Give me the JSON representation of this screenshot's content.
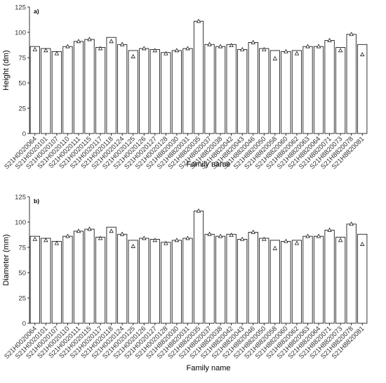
{
  "chart_data": [
    {
      "type": "bar",
      "panel_label": "a)",
      "xlabel": "Family name",
      "ylabel": "Height (dm)",
      "ylim": [
        0,
        125
      ],
      "yticks": [
        0,
        25,
        50,
        75,
        100,
        125
      ],
      "grid": false,
      "categories": [
        "S21H0020064",
        "S21H0020101",
        "S21H0020107",
        "S21H0020110",
        "S21H0020111",
        "S21H0020115",
        "S21H0020117",
        "S21H0020118",
        "S21H0020124",
        "S21H0020125",
        "S21H0020126",
        "S21H0020127",
        "S21H0020128",
        "S21H8820030",
        "S21H8820031",
        "S21H8820035",
        "S21H8820037",
        "S21H8820038",
        "S21H8820042",
        "S21H8820043",
        "S21H8820046",
        "S21H8820050",
        "S21H8820058",
        "S21H8820060",
        "S21H8820062",
        "S21H8820063",
        "S21H8820064",
        "S21H8820071",
        "S21H8820073",
        "S21H8820078",
        "S21H8820081"
      ],
      "series": [
        {
          "type": "bar",
          "values": [
            86,
            84,
            81,
            86,
            91,
            93,
            85,
            95,
            88,
            82,
            84,
            83,
            80,
            82,
            84,
            111,
            88,
            86,
            88,
            83,
            90,
            84,
            82,
            81,
            82,
            86,
            86,
            92,
            85,
            98,
            88
          ]
        },
        {
          "type": "scatter",
          "marker": "triangle",
          "values": [
            83,
            82,
            79,
            86,
            91,
            93,
            84,
            91,
            88,
            76,
            84,
            82,
            79,
            82,
            84,
            111,
            88,
            86,
            87,
            83,
            90,
            83,
            74,
            81,
            79,
            86,
            86,
            92,
            82,
            98,
            78
          ]
        }
      ]
    },
    {
      "type": "bar",
      "panel_label": "b)",
      "xlabel": "Family name",
      "ylabel": "Diameter (mm)",
      "ylim": [
        0,
        125
      ],
      "yticks": [
        0,
        25,
        50,
        75,
        100,
        125
      ],
      "grid": false,
      "categories": [
        "S21H0020064",
        "S21H0020101",
        "S21H0020107",
        "S21H0020110",
        "S21H0020111",
        "S21H0020115",
        "S21H0020117",
        "S21H0020118",
        "S21H0020124",
        "S21H0020125",
        "S21H0020126",
        "S21H0020127",
        "S21H0020128",
        "S21H8820030",
        "S21H8820031",
        "S21H8820035",
        "S21H8820037",
        "S21H8820038",
        "S21H8820042",
        "S21H8820043",
        "S21H8820046",
        "S21H8820050",
        "S21H8820058",
        "S21H8820060",
        "S21H8820062",
        "S21H8820063",
        "S21H8820064",
        "S21H8820071",
        "S21H8820073",
        "S21H8820078",
        "S21H8820081"
      ],
      "series": [
        {
          "type": "bar",
          "values": [
            86,
            84,
            81,
            86,
            91,
            93,
            85,
            95,
            88,
            82,
            84,
            83,
            80,
            82,
            84,
            111,
            88,
            86,
            88,
            83,
            90,
            84,
            82,
            81,
            82,
            86,
            86,
            92,
            85,
            98,
            88
          ]
        },
        {
          "type": "scatter",
          "marker": "triangle",
          "values": [
            83,
            82,
            79,
            86,
            91,
            93,
            84,
            91,
            88,
            76,
            84,
            82,
            79,
            82,
            84,
            111,
            88,
            86,
            87,
            83,
            90,
            83,
            74,
            81,
            79,
            86,
            86,
            92,
            82,
            98,
            78
          ]
        }
      ]
    }
  ]
}
